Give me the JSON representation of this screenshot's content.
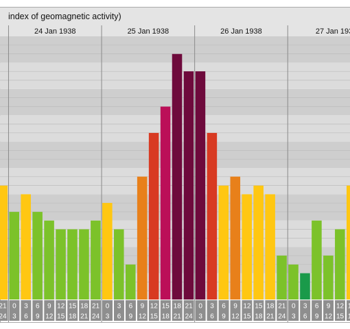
{
  "chart_data": {
    "type": "bar",
    "title": "index of geomagnetic activity)",
    "days": [
      {
        "label": "",
        "start_slot": 0
      },
      {
        "label": "24 Jan 1938",
        "start_slot": 1
      },
      {
        "label": "25 Jan 1938",
        "start_slot": 9
      },
      {
        "label": "26 Jan 1938",
        "start_slot": 17
      },
      {
        "label": "27 Jan 193",
        "start_slot": 25
      }
    ],
    "categories": [
      "21-24",
      "0-3",
      "3-6",
      "6-9",
      "9-12",
      "12-15",
      "15-18",
      "18-21",
      "21-24",
      "0-3",
      "3-6",
      "6-9",
      "9-12",
      "12-15",
      "15-18",
      "18-21",
      "21-24",
      "0-3",
      "3-6",
      "6-9",
      "9-12",
      "12-15",
      "15-18",
      "18-21",
      "21-24",
      "0-3",
      "3-6",
      "6-9",
      "9-12",
      "12-15",
      "15-18"
    ],
    "tick_rows": [
      [
        "21",
        "0",
        "3",
        "6",
        "9",
        "12",
        "15",
        "18",
        "21",
        "0",
        "3",
        "6",
        "9",
        "12",
        "15",
        "18",
        "21",
        "0",
        "3",
        "6",
        "9",
        "12",
        "15",
        "18",
        "21",
        "0",
        "3",
        "6",
        "9",
        "12",
        "15"
      ],
      [
        "24",
        "3",
        "6",
        "9",
        "12",
        "15",
        "18",
        "21",
        "24",
        "3",
        "6",
        "9",
        "12",
        "15",
        "18",
        "21",
        "24",
        "3",
        "6",
        "9",
        "12",
        "15",
        "18",
        "21",
        "24",
        "3",
        "6",
        "9",
        "12",
        "15",
        "18"
      ]
    ],
    "values": [
      4.33,
      3.33,
      4,
      3.33,
      3,
      2.67,
      2.67,
      2.67,
      3,
      3.67,
      2.67,
      1.33,
      4.67,
      6.33,
      7.33,
      9.33,
      8.67,
      8.67,
      6.33,
      4.33,
      4.67,
      4,
      4.33,
      4,
      1.67,
      1.33,
      1,
      3,
      1.67,
      2.67,
      4.33
    ],
    "ylim": [
      0,
      10
    ],
    "grid": true,
    "colors": {
      "dark_green": "#1a9a4a",
      "green": "#7cc22a",
      "yellow": "#ffc712",
      "orange": "#e8801a",
      "red": "#d83a22",
      "magenta": "#bb0f58",
      "maroon": "#6e0a3c"
    }
  }
}
